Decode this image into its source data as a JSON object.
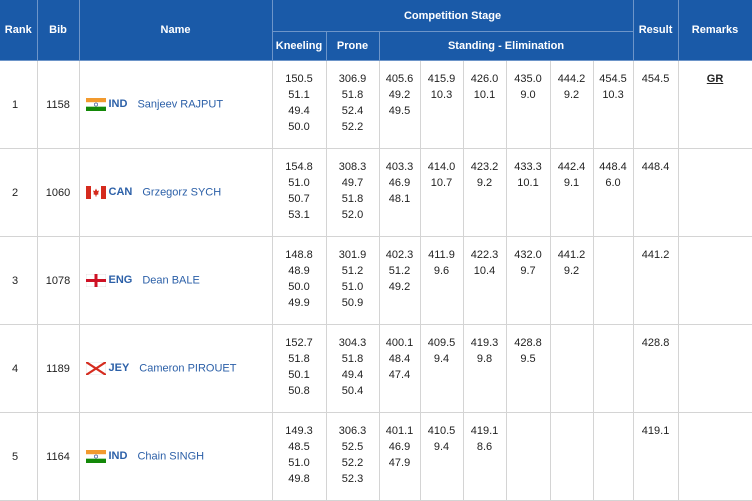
{
  "headers": {
    "rank": "Rank",
    "bib": "Bib",
    "name": "Name",
    "competition_stage": "Competition Stage",
    "kneeling": "Kneeling",
    "prone": "Prone",
    "standing_elimination": "Standing - Elimination",
    "result": "Result",
    "remarks": "Remarks"
  },
  "rows": [
    {
      "rank": "1",
      "bib": "1158",
      "noc": "IND",
      "name": "Sanjeev RAJPUT",
      "kneeling": [
        "150.5",
        "51.1",
        "49.4",
        "50.0"
      ],
      "prone": [
        "306.9",
        "51.8",
        "52.4",
        "52.2"
      ],
      "st": [
        [
          "405.6",
          "49.2",
          "49.5"
        ],
        [
          "415.9",
          "10.3"
        ],
        [
          "426.0",
          "10.1"
        ],
        [
          "435.0",
          "9.0"
        ],
        [
          "444.2",
          "9.2"
        ],
        [
          "454.5",
          "10.3"
        ]
      ],
      "result": "454.5",
      "remarks": "GR"
    },
    {
      "rank": "2",
      "bib": "1060",
      "noc": "CAN",
      "name": "Grzegorz SYCH",
      "kneeling": [
        "154.8",
        "51.0",
        "50.7",
        "53.1"
      ],
      "prone": [
        "308.3",
        "49.7",
        "51.8",
        "52.0"
      ],
      "st": [
        [
          "403.3",
          "46.9",
          "48.1"
        ],
        [
          "414.0",
          "10.7"
        ],
        [
          "423.2",
          "9.2"
        ],
        [
          "433.3",
          "10.1"
        ],
        [
          "442.4",
          "9.1"
        ],
        [
          "448.4",
          "6.0"
        ]
      ],
      "result": "448.4",
      "remarks": ""
    },
    {
      "rank": "3",
      "bib": "1078",
      "noc": "ENG",
      "name": "Dean BALE",
      "kneeling": [
        "148.8",
        "48.9",
        "50.0",
        "49.9"
      ],
      "prone": [
        "301.9",
        "51.2",
        "51.0",
        "50.9"
      ],
      "st": [
        [
          "402.3",
          "51.2",
          "49.2"
        ],
        [
          "411.9",
          "9.6"
        ],
        [
          "422.3",
          "10.4"
        ],
        [
          "432.0",
          "9.7"
        ],
        [
          "441.2",
          "9.2"
        ],
        []
      ],
      "result": "441.2",
      "remarks": ""
    },
    {
      "rank": "4",
      "bib": "1189",
      "noc": "JEY",
      "name": "Cameron PIROUET",
      "kneeling": [
        "152.7",
        "51.8",
        "50.1",
        "50.8"
      ],
      "prone": [
        "304.3",
        "51.8",
        "49.4",
        "50.4"
      ],
      "st": [
        [
          "400.1",
          "48.4",
          "47.4"
        ],
        [
          "409.5",
          "9.4"
        ],
        [
          "419.3",
          "9.8"
        ],
        [
          "428.8",
          "9.5"
        ],
        [],
        []
      ],
      "result": "428.8",
      "remarks": ""
    },
    {
      "rank": "5",
      "bib": "1164",
      "noc": "IND",
      "name": "Chain SINGH",
      "kneeling": [
        "149.3",
        "48.5",
        "51.0",
        "49.8"
      ],
      "prone": [
        "306.3",
        "52.5",
        "52.2",
        "52.3"
      ],
      "st": [
        [
          "401.1",
          "46.9",
          "47.9"
        ],
        [
          "410.5",
          "9.4"
        ],
        [
          "419.1",
          "8.6"
        ],
        [],
        [],
        []
      ],
      "result": "419.1",
      "remarks": ""
    }
  ],
  "colors": {
    "header_bg": "#1a5aa8",
    "text_blue": "#2c60a8"
  }
}
